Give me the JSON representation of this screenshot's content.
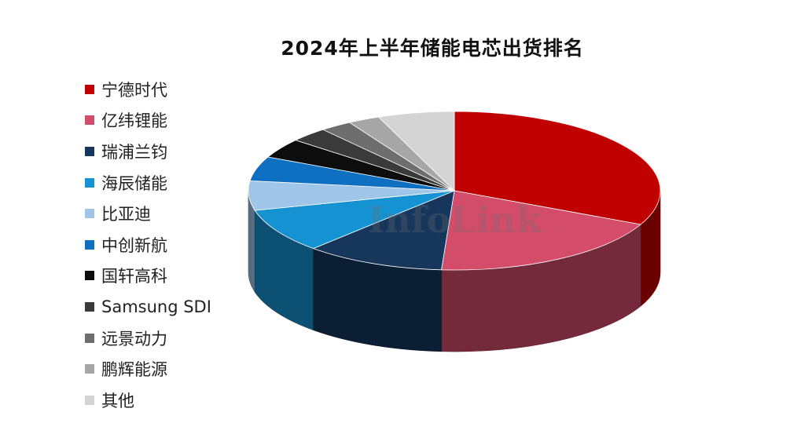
{
  "chart_data": {
    "type": "pie",
    "title": "2024年上半年储能电芯出货排名",
    "labels": [
      "宁德时代",
      "亿纬锂能",
      "瑞浦兰钧",
      "海辰储能",
      "比亚迪",
      "中创新航",
      "国轩高科",
      "Samsung SDI",
      "远景动力",
      "鹏辉能源",
      "其他"
    ],
    "values": [
      32.0,
      19.0,
      11.0,
      9.0,
      6.0,
      5.0,
      4.0,
      3.0,
      2.5,
      2.5,
      6.0
    ],
    "colors": [
      "#c00000",
      "#d34c6a",
      "#16365c",
      "#1592d1",
      "#9fc5e8",
      "#0f6fc1",
      "#0d0d0d",
      "#3a3a3a",
      "#6e6e6e",
      "#a6a6a6",
      "#d4d4d4"
    ],
    "legend_position": "left",
    "style": "3d",
    "watermark": "InfoLink"
  }
}
